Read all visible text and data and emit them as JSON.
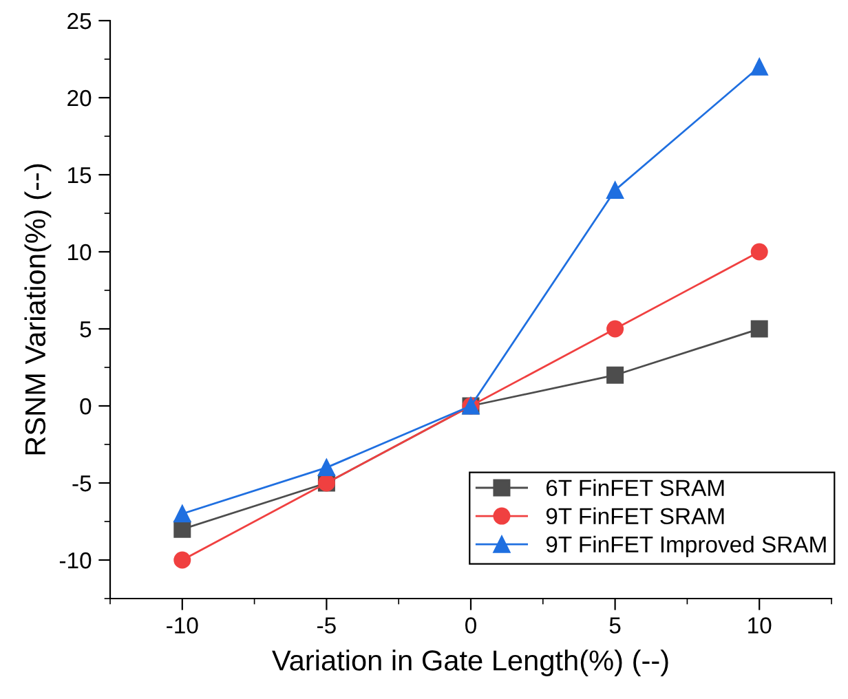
{
  "chart_data": {
    "type": "line",
    "xlabel": "Variation in Gate Length(%) (--)",
    "ylabel": "RSNM Variation(%) (--)",
    "x": [
      -10,
      -5,
      0,
      5,
      10
    ],
    "series": [
      {
        "name": "6T FinFET SRAM",
        "color": "#4d4d4d",
        "marker": "square",
        "values": [
          -8,
          -5,
          0,
          2,
          5
        ]
      },
      {
        "name": "9T FinFET SRAM",
        "color": "#f04040",
        "marker": "circle",
        "values": [
          -10,
          -5,
          0,
          5,
          10
        ]
      },
      {
        "name": "9T FinFET Improved SRAM",
        "color": "#1f6fe0",
        "marker": "triangle",
        "values": [
          -7,
          -4,
          0,
          14,
          22
        ]
      }
    ],
    "xlim": [
      -12.5,
      12.5
    ],
    "ylim": [
      -12.5,
      25
    ],
    "xticks": [
      {
        "value": -12.5,
        "label": null
      },
      -10,
      {
        "value": -7.5,
        "label": null
      },
      -5,
      {
        "value": -2.5,
        "label": null
      },
      0,
      {
        "value": 2.5,
        "label": null
      },
      5,
      {
        "value": 7.5,
        "label": null
      },
      10,
      {
        "value": 12.5,
        "label": null
      }
    ],
    "yticks": [
      {
        "value": -12.5,
        "label": null
      },
      -10,
      {
        "value": -7.5,
        "label": null
      },
      -5,
      {
        "value": -2.5,
        "label": null
      },
      0,
      {
        "value": 2.5,
        "label": null
      },
      5,
      {
        "value": 7.5,
        "label": null
      },
      10,
      {
        "value": 12.5,
        "label": null
      },
      15,
      {
        "value": 17.5,
        "label": null
      },
      20,
      {
        "value": 22.5,
        "label": null
      },
      25
    ],
    "grid": false,
    "legend": "bottom right",
    "line_style": "solid"
  }
}
